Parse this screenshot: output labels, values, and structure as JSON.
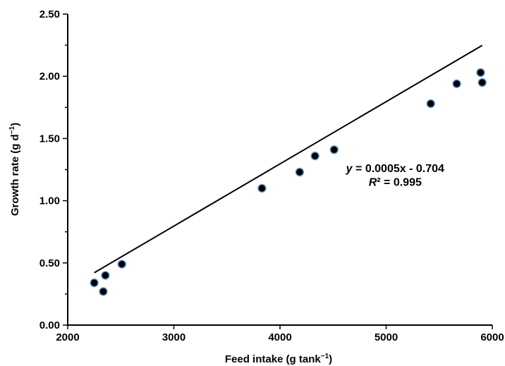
{
  "chart_data": {
    "type": "scatter",
    "title": "",
    "xlabel": "Feed intake (g tank",
    "xlabel_sup": "−1",
    "xlabel_end": ")",
    "ylabel": "Growth rate (g d",
    "ylabel_sup": "−1",
    "ylabel_end": ")",
    "xlim": [
      2000,
      6000
    ],
    "ylim": [
      0,
      2.5
    ],
    "x_ticks": [
      2000,
      3000,
      4000,
      5000,
      6000
    ],
    "x_tick_labels": [
      "2000",
      "3000",
      "4000",
      "5000",
      "6000"
    ],
    "y_ticks": [
      0,
      0.5,
      1.0,
      1.5,
      2.0,
      2.5
    ],
    "y_tick_labels": [
      "0.00",
      "0.50",
      "1.00",
      "1.50",
      "2.00",
      "2.50"
    ],
    "y_minor_step": 0.25,
    "grid": false,
    "legend": "none",
    "series": [
      {
        "points": [
          {
            "x": 2250,
            "y": 0.34
          },
          {
            "x": 2335,
            "y": 0.27
          },
          {
            "x": 2355,
            "y": 0.4
          },
          {
            "x": 2510,
            "y": 0.49
          },
          {
            "x": 3830,
            "y": 1.1
          },
          {
            "x": 4185,
            "y": 1.23
          },
          {
            "x": 4330,
            "y": 1.36
          },
          {
            "x": 4510,
            "y": 1.41
          },
          {
            "x": 5420,
            "y": 1.78
          },
          {
            "x": 5665,
            "y": 1.94
          },
          {
            "x": 5890,
            "y": 2.03
          },
          {
            "x": 5905,
            "y": 1.95
          }
        ]
      }
    ],
    "trendline": {
      "slope": 0.0005,
      "intercept": -0.704,
      "x_range": [
        2250,
        5905
      ]
    },
    "annotation": {
      "eq_var": "y",
      "eq_rest": " = 0.0005x - 0.704",
      "r2_var": "R",
      "r2_rest": "² = 0.995",
      "anchor_x": 5085,
      "eq_y": 1.23,
      "r2_y": 1.12
    },
    "colors": {
      "point_fill": "#000000",
      "point_stroke": "#6fa0d0",
      "line": "#000000",
      "axis": "#000000"
    }
  }
}
